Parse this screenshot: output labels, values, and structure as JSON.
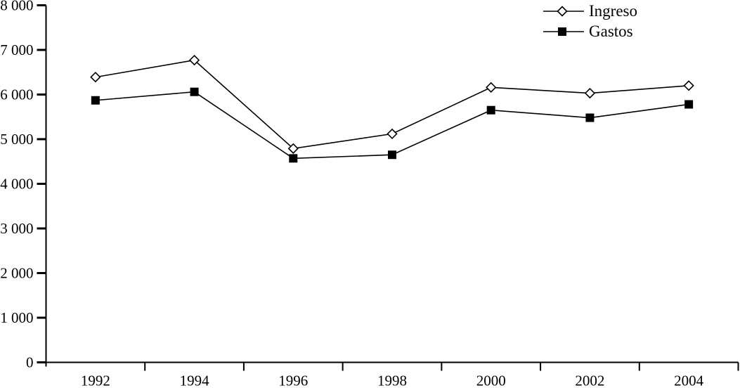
{
  "chart_data": {
    "type": "line",
    "title": "",
    "xlabel": "",
    "ylabel": "",
    "categories": [
      "1992",
      "1994",
      "1996",
      "1998",
      "2000",
      "2002",
      "2004"
    ],
    "series": [
      {
        "name": "Ingreso",
        "marker": "open-diamond",
        "color": "#000000",
        "values": [
          6390,
          6770,
          4790,
          5120,
          6160,
          6030,
          6200
        ]
      },
      {
        "name": "Gastos",
        "marker": "filled-square",
        "color": "#000000",
        "values": [
          5870,
          6060,
          4570,
          4650,
          5650,
          5480,
          5780
        ]
      }
    ],
    "ylim": [
      0,
      8000
    ],
    "ytick_step": 1000,
    "ytick_labels": [
      "0",
      "1 000",
      "2 000",
      "3 000",
      "4 000",
      "5 000",
      "6 000",
      "7 000",
      "8 000"
    ],
    "grid": false,
    "legend_position": "top-right",
    "axis_color": "#000000",
    "background_color": "#ffffff"
  }
}
